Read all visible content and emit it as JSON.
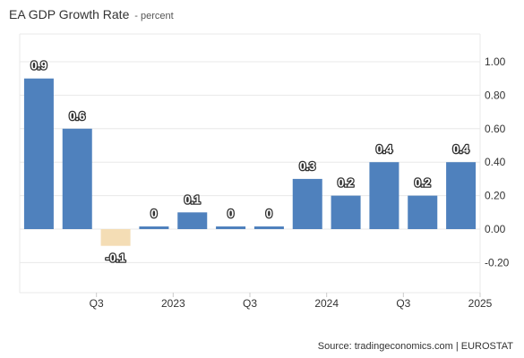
{
  "header": {
    "title": "EA GDP Growth Rate",
    "subtitle": "- percent"
  },
  "footer": {
    "source": "Source: tradingeconomics.com | EUROSTAT"
  },
  "colors": {
    "positive": "#4f81bd",
    "negative": "#f4ddb5",
    "grid": "#e8e8e8"
  },
  "chart_data": {
    "type": "bar",
    "title": "EA GDP Growth Rate",
    "subtitle": "percent",
    "xlabel": "",
    "ylabel": "",
    "ylim": [
      -0.38,
      1.18
    ],
    "yticks": [
      1.0,
      0.8,
      0.6,
      0.4,
      0.2,
      0.0,
      -0.2
    ],
    "ytick_labels": [
      "1.00",
      "0.80",
      "0.60",
      "0.40",
      "0.20",
      "0.00",
      "-0.20"
    ],
    "xtick_labels": [
      "Q3",
      "2023",
      "Q3",
      "2024",
      "Q3",
      "2025"
    ],
    "values": [
      0.9,
      0.6,
      -0.1,
      0.01,
      0.1,
      0.01,
      0.01,
      0.3,
      0.2,
      0.4,
      0.2,
      0.4
    ],
    "labels": [
      "0.9",
      "0.6",
      "-0.1",
      "0",
      "0.1",
      "0",
      "0",
      "0.3",
      "0.2",
      "0.4",
      "0.2",
      "0.4"
    ],
    "grid": true,
    "legend": "none"
  }
}
